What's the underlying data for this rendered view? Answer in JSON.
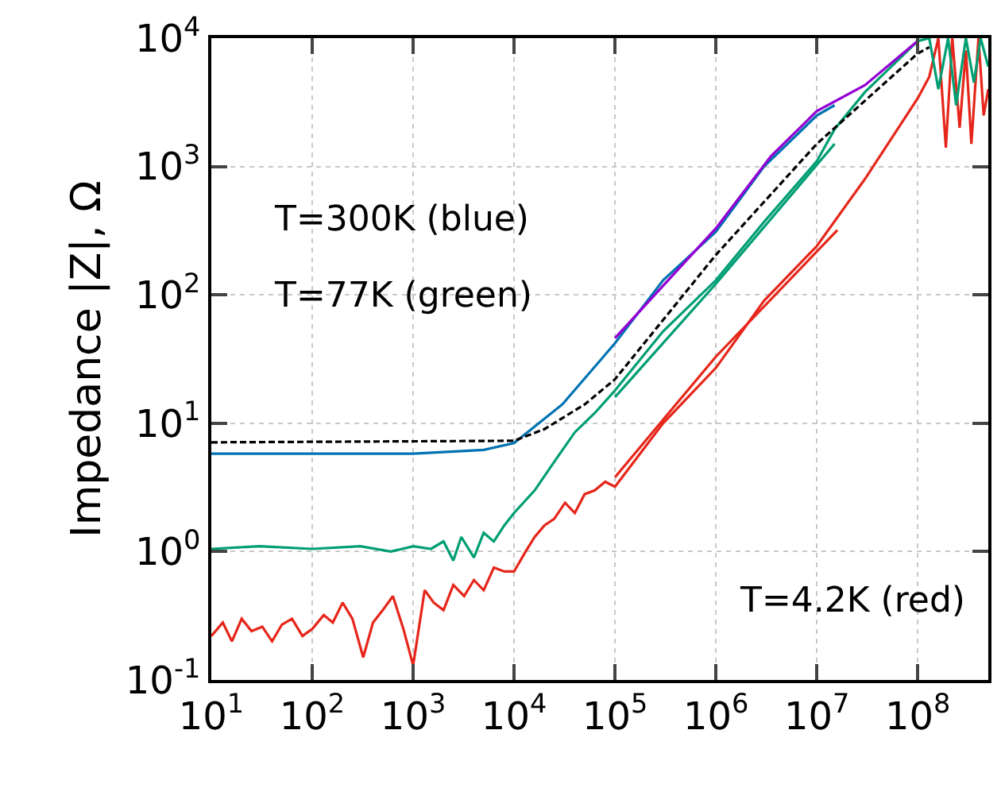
{
  "chart_data": {
    "type": "line",
    "ylabel": "Impedance |Z|, Ω",
    "log": "xy",
    "grid": true,
    "marker": "none",
    "xlim": [
      10,
      500000000
    ],
    "ylim": [
      0.1,
      10000
    ],
    "xticks": [
      {
        "value": 10,
        "label": "10$^{1}$"
      },
      {
        "value": 100,
        "label": "10$^{2}$"
      },
      {
        "value": 1000,
        "label": "10$^{3}$"
      },
      {
        "value": 10000,
        "label": "10$^{4}$"
      },
      {
        "value": 100000,
        "label": "10$^{5}$"
      },
      {
        "value": 1000000,
        "label": "10$^{6}$"
      },
      {
        "value": 10000000,
        "label": "10$^{7}$"
      },
      {
        "value": 100000000,
        "label": "10$^{8}$"
      }
    ],
    "yticks": [
      {
        "value": 0.1,
        "label": "10$^{-1}$"
      },
      {
        "value": 1,
        "label": "10$^{0}$"
      },
      {
        "value": 10,
        "label": "10$^{1}$"
      },
      {
        "value": 100,
        "label": "10$^{2}$"
      },
      {
        "value": 1000,
        "label": "10$^{3}$"
      },
      {
        "value": 10000,
        "label": "10$^{4}$"
      }
    ],
    "annotations": [
      "T=300K (blue)",
      "T=77K (green)",
      "T=4.2K (red)"
    ],
    "series": [
      {
        "color": "#e6261a",
        "x": [
          10,
          13,
          16,
          20,
          25,
          32,
          40,
          50,
          63,
          80,
          100,
          130,
          160,
          200,
          250,
          320,
          400,
          500,
          630,
          800,
          1000,
          1300,
          1600,
          2000,
          2500,
          3200,
          4000,
          5000,
          6300,
          8000,
          10000,
          13000,
          16000,
          20000,
          25000,
          32000,
          40000,
          50000,
          63000,
          80000,
          100000,
          300000,
          1000000,
          3000000,
          10000000,
          30000000,
          100000000,
          130000000,
          160000000,
          190000000,
          220000000,
          260000000,
          300000000,
          340000000,
          400000000,
          450000000,
          500000000
        ],
        "values": [
          0.22,
          0.28,
          0.2,
          0.3,
          0.24,
          0.26,
          0.2,
          0.27,
          0.3,
          0.22,
          0.25,
          0.32,
          0.28,
          0.4,
          0.3,
          0.15,
          0.28,
          0.35,
          0.45,
          0.25,
          0.13,
          0.5,
          0.4,
          0.35,
          0.55,
          0.45,
          0.6,
          0.5,
          0.75,
          0.7,
          0.7,
          1.0,
          1.3,
          1.6,
          1.8,
          2.4,
          2.0,
          2.8,
          3.0,
          3.5,
          3.2,
          10,
          27,
          90,
          240,
          800,
          3400,
          5000,
          10000,
          1400,
          10000,
          2000,
          8000,
          1500,
          10000,
          2500,
          4000
        ]
      },
      {
        "color": "#e6261a",
        "x": [
          100000,
          1000000,
          16000000
        ],
        "values": [
          3.8,
          33,
          320
        ]
      },
      {
        "color": "#009e73",
        "x": [
          10,
          30,
          100,
          300,
          600,
          1000,
          1500,
          2000,
          2500,
          3000,
          4000,
          5000,
          6300,
          8000,
          10000,
          16000,
          25000,
          40000,
          63000,
          100000,
          300000,
          1000000,
          3000000,
          10000000,
          15000000,
          30000000,
          100000000,
          130000000,
          160000000,
          200000000,
          240000000,
          300000000,
          360000000,
          420000000,
          500000000
        ],
        "values": [
          1.05,
          1.1,
          1.05,
          1.1,
          1.0,
          1.1,
          1.05,
          1.2,
          0.85,
          1.3,
          0.9,
          1.4,
          1.2,
          1.6,
          2.0,
          3.0,
          5,
          8.5,
          12,
          18,
          52,
          130,
          370,
          1100,
          1950,
          3800,
          9500,
          10000,
          4000,
          10000,
          3000,
          10000,
          4500,
          10000,
          6000
        ]
      },
      {
        "color": "#009e73",
        "x": [
          100000,
          1000000,
          15000000
        ],
        "values": [
          16,
          122,
          1500
        ]
      },
      {
        "color": "#0072b2",
        "x": [
          10,
          100,
          1000,
          5000,
          10000,
          30000,
          100000,
          300000,
          1000000,
          3000000,
          10000000,
          15000000
        ],
        "values": [
          5.8,
          5.8,
          5.8,
          6.2,
          7.0,
          14,
          42,
          130,
          310,
          1000,
          2500,
          3000
        ]
      },
      {
        "color": "#9400d3",
        "x": [
          100000,
          1000000,
          3500000,
          10000000,
          30000000,
          100000000
        ],
        "values": [
          46,
          330,
          1200,
          2700,
          4300,
          9500
        ]
      },
      {
        "color": "#000000",
        "line_style": "dashed",
        "x": [
          10,
          10000,
          20000,
          50000,
          100000,
          1000000,
          10000000,
          100000000,
          130000000
        ],
        "values": [
          7.1,
          7.3,
          9,
          14,
          22,
          205,
          1500,
          7600,
          8500
        ]
      }
    ]
  }
}
